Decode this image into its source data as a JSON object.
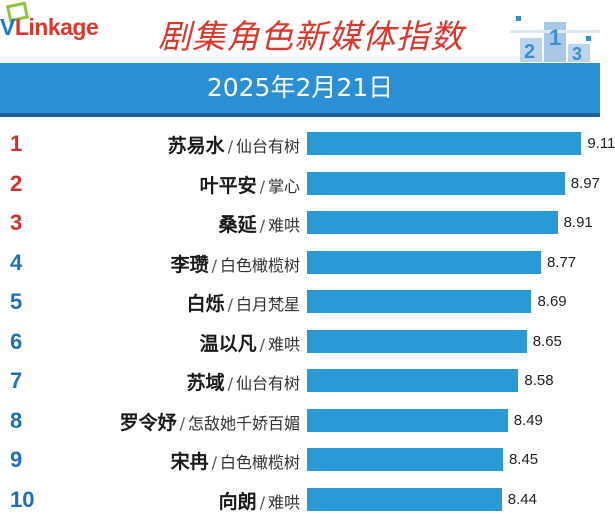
{
  "header": {
    "logo_v": "V",
    "logo_rest": "Linkage",
    "title": "剧集角色新媒体指数",
    "date": "2025年2月21日"
  },
  "colors": {
    "bar": "#2a9ad6",
    "band": "#2a8fd4",
    "rank_top3": "#d32f2f",
    "rank_other": "#1e6fb8",
    "title": "#e0352b"
  },
  "chart_data": {
    "type": "bar",
    "orientation": "horizontal",
    "xlim": [
      6.8,
      9.2
    ],
    "ranks": [
      "1",
      "2",
      "3",
      "4",
      "5",
      "6",
      "7",
      "8",
      "9",
      "10"
    ],
    "names": [
      "苏易水",
      "叶平安",
      "桑延",
      "李瓒",
      "白烁",
      "温以凡",
      "苏域",
      "罗令妤",
      "宋冉",
      "向朗"
    ],
    "dramas": [
      "仙台有树",
      "掌心",
      "难哄",
      "白色橄榄树",
      "白月梵星",
      "难哄",
      "仙台有树",
      "怎敌她千娇百媚",
      "白色橄榄树",
      "难哄"
    ],
    "separator": "/",
    "values": [
      9.11,
      8.97,
      8.91,
      8.77,
      8.69,
      8.65,
      8.58,
      8.49,
      8.45,
      8.44
    ],
    "value_labels": [
      "9.11",
      "8.97",
      "8.91",
      "8.77",
      "8.69",
      "8.65",
      "8.58",
      "8.49",
      "8.45",
      "8.44"
    ]
  }
}
